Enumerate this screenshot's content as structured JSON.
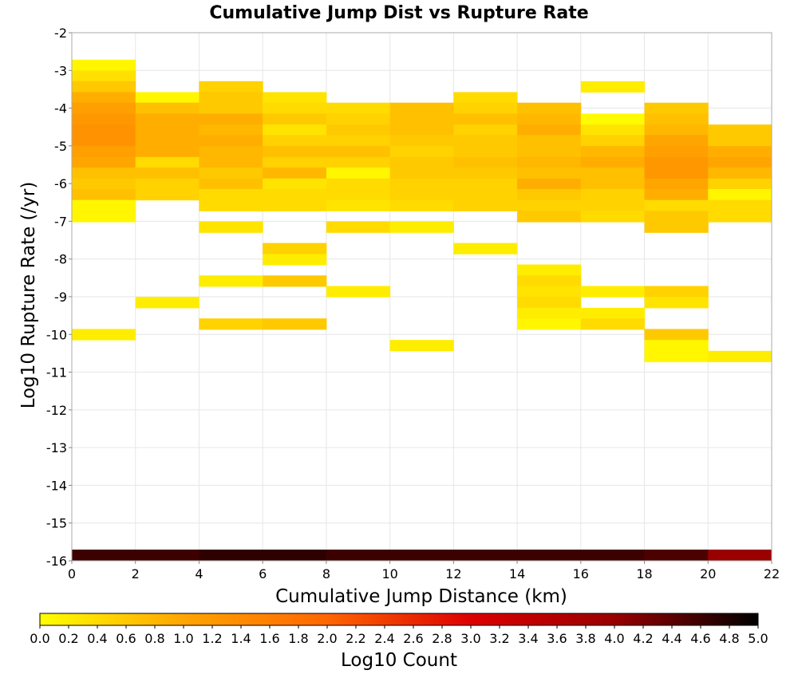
{
  "chart_data": {
    "type": "heatmap",
    "title": "Cumulative Jump Dist vs Rupture Rate",
    "xlabel": "Cumulative Jump Distance (km)",
    "ylabel": "Log10 Rupture Rate (/yr)",
    "xlim": [
      0,
      22
    ],
    "ylim": [
      -16,
      -2
    ],
    "x_ticks": [
      "0",
      "2",
      "4",
      "6",
      "8",
      "10",
      "12",
      "14",
      "16",
      "18",
      "20",
      "22"
    ],
    "y_ticks": [
      "-2",
      "-3",
      "-4",
      "-5",
      "-6",
      "-7",
      "-8",
      "-9",
      "-10",
      "-11",
      "-12",
      "-13",
      "-14",
      "-15",
      "-16"
    ],
    "x_bin_width": 2,
    "y_bin_height": 0.29,
    "grid": true,
    "colorbar": {
      "label": "Log10 Count",
      "range": [
        0,
        5
      ],
      "ticks": [
        "0.0",
        "0.2",
        "0.4",
        "0.6",
        "0.8",
        "1.0",
        "1.2",
        "1.4",
        "1.6",
        "1.8",
        "2.0",
        "2.2",
        "2.4",
        "2.6",
        "2.8",
        "3.0",
        "3.2",
        "3.4",
        "3.6",
        "3.8",
        "4.0",
        "4.2",
        "4.4",
        "4.6",
        "4.8",
        "5.0"
      ],
      "colors": [
        "#ffff00",
        "#ffa500",
        "#ff6600",
        "#dd0000",
        "#990000",
        "#000000"
      ]
    },
    "cells": [
      [
        0,
        -2.86,
        0.1
      ],
      [
        0,
        -3.15,
        0.35
      ],
      [
        0,
        -3.43,
        0.6
      ],
      [
        0,
        -3.72,
        0.9
      ],
      [
        0,
        -4.0,
        1.1
      ],
      [
        0,
        -4.29,
        1.2
      ],
      [
        0,
        -4.58,
        1.3
      ],
      [
        0,
        -4.86,
        1.3
      ],
      [
        0,
        -5.15,
        1.1
      ],
      [
        0,
        -5.44,
        1.0
      ],
      [
        0,
        -5.72,
        0.7
      ],
      [
        0,
        -6.01,
        0.6
      ],
      [
        0,
        -6.29,
        0.7
      ],
      [
        0,
        -6.58,
        0.1
      ],
      [
        0,
        -6.87,
        0.1
      ],
      [
        0,
        -10.0,
        0.2
      ],
      [
        2,
        -3.72,
        0.1
      ],
      [
        2,
        -4.0,
        0.7
      ],
      [
        2,
        -4.29,
        0.9
      ],
      [
        2,
        -4.58,
        0.9
      ],
      [
        2,
        -4.86,
        0.9
      ],
      [
        2,
        -5.15,
        0.9
      ],
      [
        2,
        -5.44,
        0.4
      ],
      [
        2,
        -5.72,
        0.7
      ],
      [
        2,
        -6.01,
        0.5
      ],
      [
        2,
        -6.29,
        0.5
      ],
      [
        2,
        -9.15,
        0.2
      ],
      [
        4,
        -3.43,
        0.5
      ],
      [
        4,
        -3.72,
        0.6
      ],
      [
        4,
        -4.0,
        0.6
      ],
      [
        4,
        -4.29,
        0.9
      ],
      [
        4,
        -4.58,
        0.8
      ],
      [
        4,
        -4.86,
        0.9
      ],
      [
        4,
        -5.15,
        0.8
      ],
      [
        4,
        -5.44,
        0.8
      ],
      [
        4,
        -5.72,
        0.6
      ],
      [
        4,
        -6.01,
        0.7
      ],
      [
        4,
        -6.29,
        0.4
      ],
      [
        4,
        -6.58,
        0.4
      ],
      [
        4,
        -7.15,
        0.3
      ],
      [
        4,
        -8.58,
        0.2
      ],
      [
        4,
        -9.72,
        0.5
      ],
      [
        6,
        -3.72,
        0.3
      ],
      [
        6,
        -4.0,
        0.4
      ],
      [
        6,
        -4.29,
        0.6
      ],
      [
        6,
        -4.58,
        0.3
      ],
      [
        6,
        -4.86,
        0.5
      ],
      [
        6,
        -5.15,
        0.7
      ],
      [
        6,
        -5.44,
        0.5
      ],
      [
        6,
        -5.72,
        0.8
      ],
      [
        6,
        -6.01,
        0.3
      ],
      [
        6,
        -6.29,
        0.4
      ],
      [
        6,
        -6.58,
        0.4
      ],
      [
        6,
        -7.72,
        0.5
      ],
      [
        6,
        -8.01,
        0.2
      ],
      [
        6,
        -8.58,
        0.6
      ],
      [
        6,
        -9.72,
        0.6
      ],
      [
        8,
        -4.0,
        0.4
      ],
      [
        8,
        -4.29,
        0.5
      ],
      [
        8,
        -4.58,
        0.6
      ],
      [
        8,
        -4.86,
        0.5
      ],
      [
        8,
        -5.15,
        0.7
      ],
      [
        8,
        -5.44,
        0.5
      ],
      [
        8,
        -5.72,
        0.1
      ],
      [
        8,
        -6.01,
        0.4
      ],
      [
        8,
        -6.29,
        0.4
      ],
      [
        8,
        -6.58,
        0.3
      ],
      [
        8,
        -7.15,
        0.4
      ],
      [
        8,
        -8.86,
        0.2
      ],
      [
        10,
        -4.0,
        0.7
      ],
      [
        10,
        -4.29,
        0.7
      ],
      [
        10,
        -4.58,
        0.7
      ],
      [
        10,
        -4.86,
        0.6
      ],
      [
        10,
        -5.15,
        0.5
      ],
      [
        10,
        -5.44,
        0.6
      ],
      [
        10,
        -5.72,
        0.6
      ],
      [
        10,
        -6.01,
        0.5
      ],
      [
        10,
        -6.29,
        0.5
      ],
      [
        10,
        -6.58,
        0.4
      ],
      [
        10,
        -7.15,
        0.2
      ],
      [
        10,
        -10.29,
        0.2
      ],
      [
        12,
        -3.72,
        0.4
      ],
      [
        12,
        -4.0,
        0.5
      ],
      [
        12,
        -4.29,
        0.7
      ],
      [
        12,
        -4.58,
        0.5
      ],
      [
        12,
        -4.86,
        0.6
      ],
      [
        12,
        -5.15,
        0.6
      ],
      [
        12,
        -5.44,
        0.7
      ],
      [
        12,
        -5.72,
        0.6
      ],
      [
        12,
        -6.01,
        0.5
      ],
      [
        12,
        -6.29,
        0.5
      ],
      [
        12,
        -6.58,
        0.5
      ],
      [
        12,
        -7.72,
        0.2
      ],
      [
        14,
        -4.0,
        0.7
      ],
      [
        14,
        -4.29,
        0.8
      ],
      [
        14,
        -4.58,
        0.9
      ],
      [
        14,
        -4.86,
        0.7
      ],
      [
        14,
        -5.15,
        0.7
      ],
      [
        14,
        -5.44,
        0.8
      ],
      [
        14,
        -5.72,
        0.7
      ],
      [
        14,
        -6.01,
        0.9
      ],
      [
        14,
        -6.29,
        0.6
      ],
      [
        14,
        -6.58,
        0.5
      ],
      [
        14,
        -6.87,
        0.6
      ],
      [
        14,
        -8.29,
        0.2
      ],
      [
        14,
        -8.58,
        0.4
      ],
      [
        14,
        -8.86,
        0.3
      ],
      [
        14,
        -9.15,
        0.4
      ],
      [
        14,
        -9.44,
        0.2
      ],
      [
        14,
        -9.72,
        0.1
      ],
      [
        16,
        -3.43,
        0.2
      ],
      [
        16,
        -4.29,
        0.05
      ],
      [
        16,
        -4.58,
        0.3
      ],
      [
        16,
        -4.86,
        0.5
      ],
      [
        16,
        -5.15,
        0.8
      ],
      [
        16,
        -5.44,
        0.9
      ],
      [
        16,
        -5.72,
        0.7
      ],
      [
        16,
        -6.01,
        0.7
      ],
      [
        16,
        -6.29,
        0.5
      ],
      [
        16,
        -6.58,
        0.5
      ],
      [
        16,
        -6.87,
        0.4
      ],
      [
        16,
        -8.86,
        0.2
      ],
      [
        16,
        -9.44,
        0.2
      ],
      [
        16,
        -9.72,
        0.4
      ],
      [
        18,
        -4.0,
        0.6
      ],
      [
        18,
        -4.29,
        0.7
      ],
      [
        18,
        -4.58,
        0.8
      ],
      [
        18,
        -4.86,
        1.0
      ],
      [
        18,
        -5.15,
        1.1
      ],
      [
        18,
        -5.44,
        1.2
      ],
      [
        18,
        -5.72,
        1.2
      ],
      [
        18,
        -6.01,
        1.0
      ],
      [
        18,
        -6.29,
        0.9
      ],
      [
        18,
        -6.58,
        0.4
      ],
      [
        18,
        -6.87,
        0.6
      ],
      [
        18,
        -7.15,
        0.6
      ],
      [
        18,
        -8.86,
        0.5
      ],
      [
        18,
        -9.15,
        0.3
      ],
      [
        18,
        -10.0,
        0.6
      ],
      [
        18,
        -10.29,
        0.1
      ],
      [
        18,
        -10.58,
        0.1
      ],
      [
        20,
        -4.58,
        0.6
      ],
      [
        20,
        -4.86,
        0.6
      ],
      [
        20,
        -5.15,
        0.9
      ],
      [
        20,
        -5.44,
        1.0
      ],
      [
        20,
        -5.72,
        0.8
      ],
      [
        20,
        -6.01,
        0.5
      ],
      [
        20,
        -6.29,
        0.1
      ],
      [
        20,
        -6.58,
        0.4
      ],
      [
        20,
        -6.87,
        0.4
      ],
      [
        20,
        -10.58,
        0.2
      ],
      [
        0,
        -15.85,
        4.6
      ],
      [
        2,
        -15.85,
        4.6
      ],
      [
        4,
        -15.85,
        4.7
      ],
      [
        6,
        -15.85,
        4.7
      ],
      [
        8,
        -15.85,
        4.6
      ],
      [
        10,
        -15.85,
        4.6
      ],
      [
        12,
        -15.85,
        4.6
      ],
      [
        14,
        -15.85,
        4.6
      ],
      [
        16,
        -15.85,
        4.6
      ],
      [
        18,
        -15.85,
        4.5
      ],
      [
        20,
        -15.85,
        4.0
      ]
    ]
  }
}
